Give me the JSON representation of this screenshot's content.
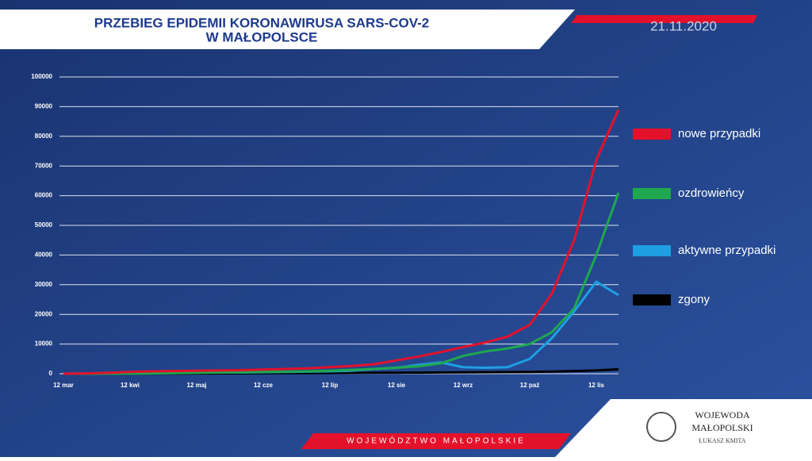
{
  "chart_data": {
    "type": "line",
    "title": [
      "PRZEBIEG EPIDEMII KORONAWIRUSA SARS-COV-2",
      "W MAŁOPOLSCE"
    ],
    "date": "21.11.2020",
    "footer": "WOJEWÓDZTWO MAŁOPOLSKIE",
    "logo_title": [
      "WOJEWODA",
      "MAŁOPOLSKI"
    ],
    "logo_subtitle": "ŁUKASZ KMITA",
    "categories": [
      "12 mar",
      null,
      null,
      "12 kwi",
      null,
      null,
      "12 maj",
      null,
      null,
      "12 cze",
      null,
      null,
      "12 lip",
      null,
      null,
      "12 sie",
      null,
      null,
      "12 wrz",
      null,
      null,
      "12 paź",
      null,
      null,
      "12 lis",
      null
    ],
    "series": [
      {
        "name": "nowe przypadki",
        "color": "#e4112b",
        "values": [
          0,
          100,
          300,
          600,
          800,
          900,
          1000,
          1100,
          1200,
          1400,
          1600,
          1800,
          2200,
          2600,
          3200,
          4500,
          5800,
          7300,
          9000,
          10500,
          12500,
          16500,
          27000,
          45000,
          72000,
          89000
        ]
      },
      {
        "name": "ozdrowieńcy",
        "color": "#1fa84f",
        "values": [
          0,
          0,
          20,
          50,
          100,
          200,
          300,
          400,
          500,
          600,
          700,
          800,
          1000,
          1300,
          1600,
          2000,
          2500,
          3500,
          6000,
          7500,
          8500,
          10000,
          14000,
          22000,
          40000,
          61000
        ]
      },
      {
        "name": "aktywne przypadki",
        "color": "#1e9fe3",
        "values": [
          0,
          100,
          300,
          500,
          500,
          500,
          500,
          500,
          400,
          500,
          600,
          700,
          800,
          1000,
          1600,
          2000,
          3000,
          3800,
          2200,
          2000,
          2200,
          5000,
          12000,
          21000,
          31000,
          26500
        ]
      },
      {
        "name": "zgony",
        "color": "#000000",
        "values": [
          0,
          5,
          20,
          40,
          60,
          80,
          100,
          120,
          150,
          170,
          200,
          230,
          260,
          290,
          320,
          350,
          380,
          420,
          460,
          500,
          550,
          600,
          750,
          900,
          1100,
          1500
        ]
      }
    ],
    "ylim": [
      0,
      100000
    ],
    "yticks": [
      0,
      10000,
      20000,
      30000,
      40000,
      50000,
      60000,
      70000,
      80000,
      90000,
      100000
    ],
    "grid": true
  }
}
